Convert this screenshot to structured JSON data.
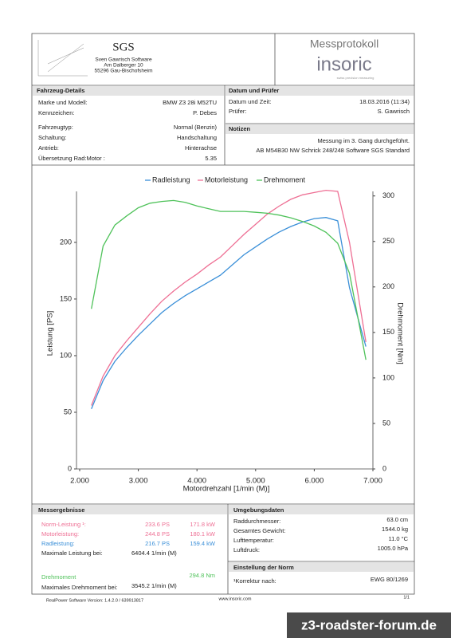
{
  "header": {
    "company": "SGS",
    "company_lines": [
      "Sven Gawrisch Software",
      "Am Dalberger 10",
      "55296 Gau-Bischofsheim"
    ],
    "title": "Messprotokoll",
    "brand": "insoric",
    "brand_tagline": "swiss precision measuring"
  },
  "vehicle": {
    "title": "Fahrzeug-Details",
    "rows": [
      [
        "Marke und Modell:",
        "BMW Z3 28i M52TU"
      ],
      [
        "Kennzeichen:",
        "P. Debes"
      ],
      [
        "Fahrzeugtyp:",
        "Normal (Benzin)"
      ],
      [
        "Schaltung:",
        "Handschaltung"
      ],
      [
        "Antrieb:",
        "Hinterachse"
      ],
      [
        "Übersetzung Rad:Motor :",
        "5.35"
      ]
    ]
  },
  "date": {
    "title": "Datum und Prüfer",
    "rows": [
      [
        "Datum und Zeit:",
        "18.03.2016 (11:34)"
      ],
      [
        "Prüfer:",
        "S. Gawrisch"
      ]
    ]
  },
  "notes": {
    "title": "Notizen",
    "lines": [
      "Messung im 3. Gang durchgeführt.",
      "AB M54B30  NW Schrick 248/248 Software SGS Standard"
    ]
  },
  "chart_data": {
    "type": "line",
    "x_label": "Motordrehzahl [1/min (M)]",
    "y_label": "Leistung [PS]",
    "y2_label": "Drehmoment [Nm]",
    "x": [
      2200,
      2400,
      2600,
      2800,
      3000,
      3200,
      3400,
      3600,
      3800,
      4000,
      4200,
      4400,
      4600,
      4800,
      5000,
      5200,
      5400,
      5600,
      5800,
      6000,
      6200,
      6400,
      6600,
      6880
    ],
    "series": [
      {
        "name": "Radleistung",
        "color": "#3a8fd8",
        "values": [
          53,
          78,
          95,
          107,
          118,
          128,
          138,
          146,
          153,
          159,
          165,
          171,
          180,
          189,
          196,
          203,
          209,
          214,
          218,
          221,
          222,
          219,
          160,
          108
        ]
      },
      {
        "name": "Motorleistung",
        "color": "#ee6f94",
        "values": [
          56,
          82,
          100,
          113,
          125,
          137,
          148,
          157,
          165,
          172,
          180,
          187,
          197,
          207,
          216,
          225,
          232,
          238,
          242,
          244,
          246,
          245,
          200,
          112
        ]
      },
      {
        "name": "Drehmoment",
        "color": "#4fc25a",
        "axis": "y2",
        "values": [
          176,
          245,
          268,
          278,
          287,
          292,
          294,
          295,
          293,
          289,
          286,
          283,
          283,
          283,
          282,
          281,
          279,
          276,
          272,
          267,
          260,
          248,
          215,
          120
        ]
      }
    ],
    "xlim": [
      2000,
      7000
    ],
    "xticks": [
      {
        "value": 2000,
        "label": "2.000"
      },
      {
        "value": 3000,
        "label": "3.000"
      },
      {
        "value": 4000,
        "label": "4.000"
      },
      {
        "value": 5000,
        "label": "5.000"
      },
      {
        "value": 6000,
        "label": "6.000"
      },
      {
        "value": 7000,
        "label": "7.000"
      }
    ],
    "ylim": [
      0,
      245
    ],
    "yticks": [
      0,
      50,
      100,
      150,
      200
    ],
    "y2lim": [
      0,
      305
    ],
    "y2ticks": [
      0,
      50,
      100,
      150,
      200,
      250,
      300
    ]
  },
  "results": {
    "title": "Messergebnisse",
    "power": [
      {
        "label": "Norm-Leistung ¹:",
        "ps": "233.6 PS",
        "kw": "171.8 kW",
        "color": "#ee6f94"
      },
      {
        "label": "Motorleistung:",
        "ps": "244.8 PS",
        "kw": "180.1 kW",
        "color": "#ee6f94"
      },
      {
        "label": "Radleistung:",
        "ps": "216.7 PS",
        "kw": "159.4 kW",
        "color": "#3a8fd8"
      }
    ],
    "max_power": [
      "Maximale Leistung bei:",
      "6404.4 1/min (M)"
    ],
    "torque": {
      "label": "Drehmoment",
      "value": "294.8 Nm",
      "color": "#4fc25a"
    },
    "max_torque": [
      "Maximales Drehmoment bei:",
      "3545.2 1/min (M)"
    ]
  },
  "environment": {
    "title": "Umgebungsdaten",
    "rows": [
      [
        "Raddurchmesser:",
        "63.0 cm"
      ],
      [
        "Gesamtes Gewicht:",
        "1544.0 kg"
      ],
      [
        "Lufttemperatur:",
        "11.0 °C"
      ],
      [
        "Luftdruck:",
        "1005.0 hPa"
      ]
    ]
  },
  "norm": {
    "title": "Einstellung der Norm",
    "row": [
      "¹Korrektur nach:",
      "EWG 80/1269"
    ]
  },
  "footer": [
    "RealPower Software Version: 1.4.2.0 / 639913817",
    "www.insoric.com",
    "1/1"
  ],
  "watermark": "z3-roadster-forum.de"
}
